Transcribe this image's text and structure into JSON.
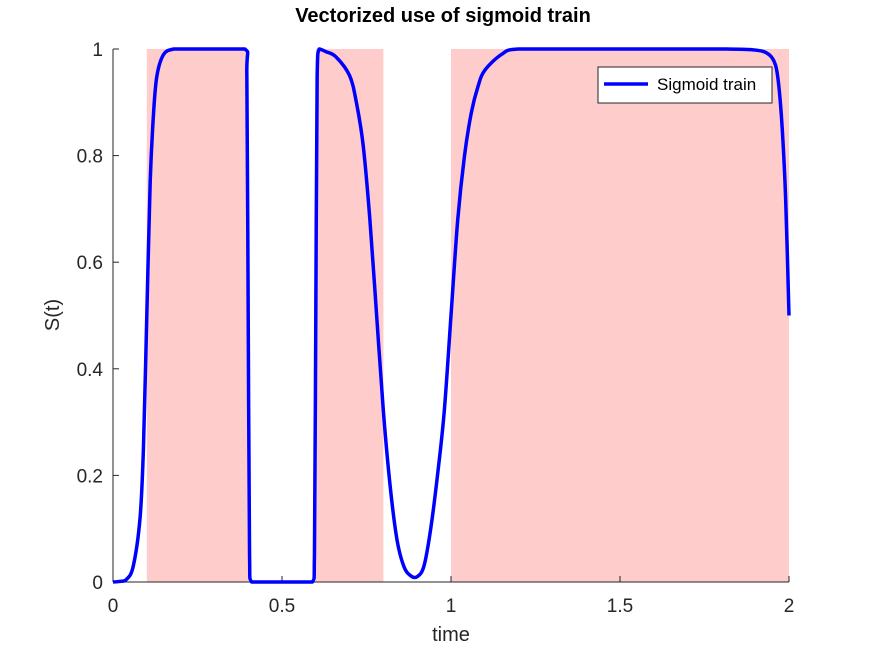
{
  "chart_data": {
    "type": "line",
    "title": "Vectorized use of sigmoid train",
    "xlabel": "time",
    "ylabel": "S(t)",
    "xlim": [
      0,
      2
    ],
    "ylim": [
      0,
      1
    ],
    "x_ticks": [
      0,
      0.5,
      1,
      1.5,
      2
    ],
    "x_tick_labels": [
      "0",
      "0.5",
      "1",
      "1.5",
      "2"
    ],
    "y_ticks": [
      0,
      0.2,
      0.4,
      0.6,
      0.8,
      1
    ],
    "y_tick_labels": [
      "0",
      "0.2",
      "0.4",
      "0.6",
      "0.8",
      "1"
    ],
    "grid": false,
    "legend_position": "top-right",
    "shaded_intervals": [
      {
        "start": 0.1,
        "end": 0.4
      },
      {
        "start": 0.6,
        "end": 0.8
      },
      {
        "start": 1.0,
        "end": 2.0
      }
    ],
    "series": [
      {
        "name": "Sigmoid train",
        "color": "#0000ff",
        "x": [
          0,
          0.02,
          0.04,
          0.06,
          0.08,
          0.09,
          0.1,
          0.11,
          0.12,
          0.13,
          0.15,
          0.18,
          0.22,
          0.3,
          0.39,
          0.396,
          0.4,
          0.404,
          0.41,
          0.45,
          0.5,
          0.55,
          0.59,
          0.596,
          0.6,
          0.604,
          0.61,
          0.63,
          0.66,
          0.7,
          0.72,
          0.74,
          0.76,
          0.78,
          0.8,
          0.82,
          0.84,
          0.86,
          0.88,
          0.9,
          0.92,
          0.94,
          0.96,
          0.98,
          1.0,
          1.02,
          1.04,
          1.06,
          1.08,
          1.1,
          1.15,
          1.2,
          1.4,
          1.6,
          1.8,
          1.9,
          1.94,
          1.96,
          1.97,
          1.98,
          1.99,
          2.0
        ],
        "y": [
          0.0,
          0.001,
          0.005,
          0.03,
          0.12,
          0.25,
          0.5,
          0.75,
          0.88,
          0.95,
          0.99,
          1.0,
          1.0,
          1.0,
          1.0,
          0.95,
          0.5,
          0.05,
          0.0,
          0.0,
          0.0,
          0.0,
          0.0,
          0.05,
          0.5,
          0.95,
          1.0,
          0.995,
          0.985,
          0.95,
          0.9,
          0.82,
          0.68,
          0.5,
          0.32,
          0.18,
          0.08,
          0.03,
          0.012,
          0.01,
          0.03,
          0.1,
          0.2,
          0.32,
          0.5,
          0.68,
          0.8,
          0.88,
          0.93,
          0.96,
          0.99,
          1.0,
          1.0,
          1.0,
          1.0,
          0.998,
          0.99,
          0.97,
          0.93,
          0.85,
          0.72,
          0.5
        ]
      }
    ]
  }
}
